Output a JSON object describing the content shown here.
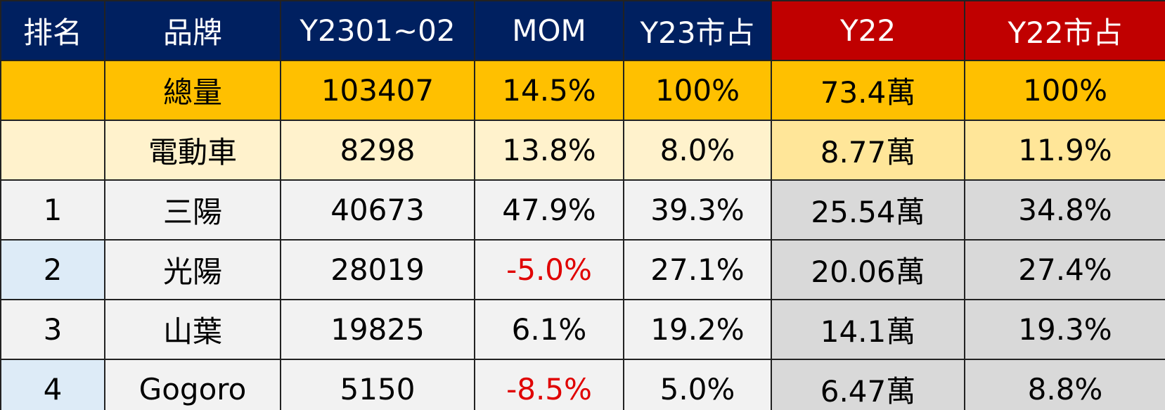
{
  "table": {
    "header": [
      "排名",
      "品牌",
      "Y2301~02",
      "MOM",
      "Y23市占",
      "Y22",
      "Y22市占"
    ],
    "rows": [
      [
        null,
        "總量",
        "103407",
        "14.5%",
        "100%",
        "73.4萬",
        "100%"
      ],
      [
        null,
        "電動車",
        "8298",
        "13.8%",
        "8.0%",
        "8.77萬",
        "11.9%"
      ],
      [
        "1",
        "三陽",
        "40673",
        "47.9%",
        "39.3%",
        "25.54萬",
        "34.8%"
      ],
      [
        "2",
        "光陽",
        "28019",
        "-5.0%",
        "27.1%",
        "20.06萬",
        "27.4%"
      ],
      [
        "3",
        "山葉",
        "19825",
        "6.1%",
        "19.2%",
        "14.1萬",
        "19.3%"
      ],
      [
        "4",
        "Gogoro",
        "5150",
        "-8.5%",
        "5.0%",
        "6.47萬",
        "8.8%"
      ]
    ]
  }
}
